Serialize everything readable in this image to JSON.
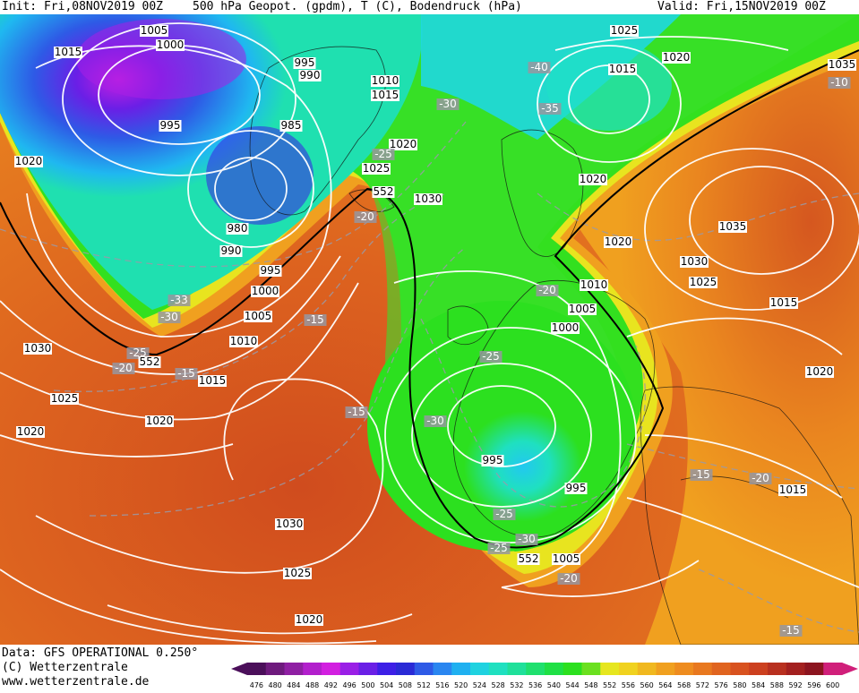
{
  "header": {
    "init": "Init: Fri,08NOV2019 00Z",
    "title": "500 hPa Geopot. (gpdm), T (C), Bodendruck (hPa)",
    "valid": "Valid: Fri,15NOV2019 00Z"
  },
  "footer": {
    "data_line": "Data: GFS OPERATIONAL 0.250°",
    "copyright": "(C) Wetterzentrale",
    "url": "www.wetterzentrale.de"
  },
  "colorbar": {
    "values": [
      "476",
      "480",
      "484",
      "488",
      "492",
      "496",
      "500",
      "504",
      "508",
      "512",
      "516",
      "520",
      "524",
      "528",
      "532",
      "536",
      "540",
      "544",
      "548",
      "552",
      "556",
      "560",
      "564",
      "568",
      "572",
      "576",
      "580",
      "584",
      "588",
      "592",
      "596",
      "600"
    ],
    "colors": [
      "#4b0f5a",
      "#6e1a7d",
      "#8f1fa3",
      "#b21fcc",
      "#d21fe0",
      "#9a1fe6",
      "#6a1fe6",
      "#3d1fe6",
      "#2a2ad6",
      "#2e5ae6",
      "#2a86f0",
      "#1fb0f0",
      "#1fd2e0",
      "#1fe0c0",
      "#1fe09a",
      "#1fe06e",
      "#1fe045",
      "#2ce01f",
      "#6be01f",
      "#e6e61f",
      "#f0d21f",
      "#f0b81f",
      "#f0a01f",
      "#ee8c1f",
      "#e8781f",
      "#e0641f",
      "#d8521f",
      "#cc401f",
      "#b8301f",
      "#a3201f",
      "#8c141f",
      "#d01f7a"
    ]
  },
  "map": {
    "pressure_labels": [
      {
        "text": "1005",
        "cls": "p"
      },
      {
        "text": "1000",
        "cls": "p"
      },
      {
        "text": "1015",
        "cls": "p"
      },
      {
        "text": "995",
        "cls": "p"
      },
      {
        "text": "990",
        "cls": "p"
      },
      {
        "text": "1010",
        "cls": "p"
      },
      {
        "text": "1015",
        "cls": "p"
      },
      {
        "text": "995",
        "cls": "p"
      },
      {
        "text": "985",
        "cls": "p"
      },
      {
        "text": "1020",
        "cls": "p"
      },
      {
        "text": "1020",
        "cls": "p"
      },
      {
        "text": "1025",
        "cls": "p"
      },
      {
        "text": "980",
        "cls": "p"
      },
      {
        "text": "990",
        "cls": "p"
      },
      {
        "text": "1030",
        "cls": "p"
      },
      {
        "text": "995",
        "cls": "p"
      },
      {
        "text": "1000",
        "cls": "p"
      },
      {
        "text": "1005",
        "cls": "p"
      },
      {
        "text": "1010",
        "cls": "p"
      },
      {
        "text": "1030",
        "cls": "p"
      },
      {
        "text": "1015",
        "cls": "p"
      },
      {
        "text": "1025",
        "cls": "p"
      },
      {
        "text": "1020",
        "cls": "p"
      },
      {
        "text": "1020",
        "cls": "p"
      },
      {
        "text": "1030",
        "cls": "p"
      },
      {
        "text": "1025",
        "cls": "p"
      },
      {
        "text": "1020",
        "cls": "p"
      },
      {
        "text": "1025",
        "cls": "p"
      },
      {
        "text": "1020",
        "cls": "p"
      },
      {
        "text": "1015",
        "cls": "p"
      },
      {
        "text": "1020",
        "cls": "p"
      },
      {
        "text": "1035",
        "cls": "p"
      },
      {
        "text": "1020",
        "cls": "p"
      },
      {
        "text": "1035",
        "cls": "p"
      },
      {
        "text": "1030",
        "cls": "p"
      },
      {
        "text": "1025",
        "cls": "p"
      },
      {
        "text": "1015",
        "cls": "p"
      },
      {
        "text": "1020",
        "cls": "p"
      },
      {
        "text": "1010",
        "cls": "p"
      },
      {
        "text": "1005",
        "cls": "p"
      },
      {
        "text": "1000",
        "cls": "p"
      },
      {
        "text": "995",
        "cls": "p"
      },
      {
        "text": "995",
        "cls": "p"
      },
      {
        "text": "1005",
        "cls": "p"
      },
      {
        "text": "1015",
        "cls": "p"
      },
      {
        "text": "1010",
        "cls": "p"
      }
    ],
    "temp_labels": [
      "-40",
      "-30",
      "-35",
      "-25",
      "-20",
      "-33",
      "-30",
      "-25",
      "-20",
      "-15",
      "-15",
      "-15",
      "-20",
      "-25",
      "-30",
      "-25",
      "-30",
      "-25",
      "-20",
      "-15",
      "-20",
      "-15",
      "-10"
    ],
    "geopot_labels": [
      "552",
      "552",
      "552"
    ]
  }
}
